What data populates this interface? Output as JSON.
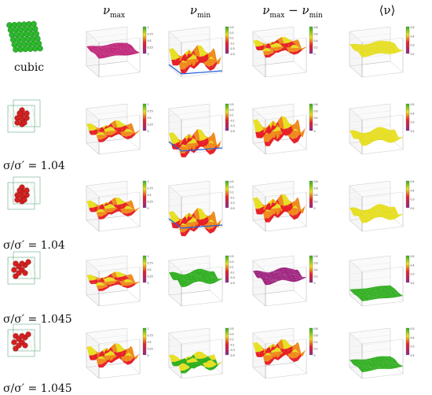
{
  "columns": [
    {
      "label": "ν",
      "sub": "max",
      "id": "nu-max"
    },
    {
      "label": "ν",
      "sub": "min",
      "id": "nu-min"
    },
    {
      "label": "ν",
      "sub": "max",
      "mid": " − ν",
      "sub2": "min",
      "id": "nu-diff"
    },
    {
      "label": "⟨ν⟩",
      "sub": "",
      "id": "nu-avg"
    }
  ],
  "rows": [
    {
      "label": "cubic",
      "ratio": ""
    },
    {
      "label": "σ/σ′ = 1.04",
      "ratio": "1.04"
    },
    {
      "label": "σ/σ′ = 1.04",
      "ratio": "1.04"
    },
    {
      "label": "σ/σ′ = 1.045",
      "ratio": "1.045"
    },
    {
      "label": "σ/σ′ = 1.045",
      "ratio": "1.045"
    }
  ],
  "colorbar_ticks": {
    "nu-max": [
      "1",
      "0.75",
      "0.5",
      "0.25",
      "0"
    ],
    "nu-min": [
      "0.5",
      "0.3",
      "0.1",
      "-0.1",
      "-0.3",
      "-0.5"
    ],
    "nu-diff": [
      "0.8",
      "0.6",
      "0.4",
      "0.2",
      "0"
    ],
    "nu-avg": [
      "0.5",
      "0.4",
      "0.3",
      "0.2"
    ]
  },
  "colors": {
    "cube_green": "#2db82d",
    "particle_red": "#d42020",
    "surface_red": "#e8202a",
    "surface_orange": "#f08a1c",
    "surface_yellow": "#e8e020",
    "surface_green": "#30b020",
    "surface_blue": "#2060e0",
    "surface_purple": "#8a2a90"
  }
}
